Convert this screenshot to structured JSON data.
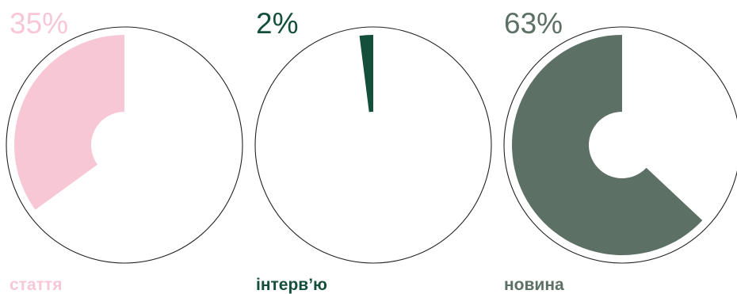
{
  "chart_data": {
    "type": "pie",
    "charts": [
      {
        "label": "стаття",
        "value": 35,
        "value_label": "35%",
        "color": "#f8c7d6"
      },
      {
        "label": "інтерв’ю",
        "value": 2,
        "value_label": "2%",
        "color": "#144f3c"
      },
      {
        "label": "новина",
        "value": 63,
        "value_label": "63%",
        "color": "#5c7065"
      }
    ]
  }
}
